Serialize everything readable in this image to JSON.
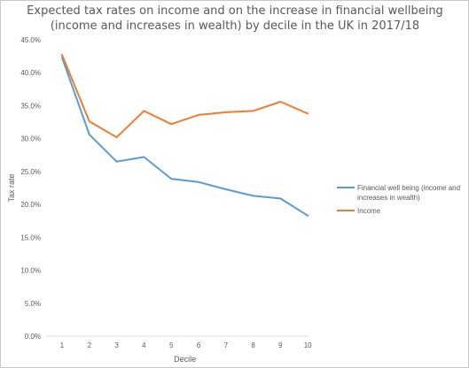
{
  "chart_data": {
    "type": "line",
    "title_lines": [
      "Expected tax rates on income and on the increase in financial wellbeing",
      "(income and increases in wealth) by decile in the UK in 2017/18"
    ],
    "xlabel": "Decile",
    "ylabel": "Tax rate",
    "x": [
      "1",
      "2",
      "3",
      "4",
      "5",
      "6",
      "7",
      "8",
      "9",
      "10"
    ],
    "ylim": [
      0,
      45
    ],
    "yticks": [
      "0.0%",
      "5.0%",
      "10.0%",
      "15.0%",
      "20.0%",
      "25.0%",
      "30.0%",
      "35.0%",
      "40.0%",
      "45.0%"
    ],
    "grid": false,
    "legend_position": "right",
    "series": [
      {
        "name_lines": [
          "Financial well being (income and",
          "increases in wealth)"
        ],
        "color": "#5b9bd5",
        "values": [
          42.3,
          30.6,
          26.5,
          27.2,
          23.9,
          23.4,
          22.3,
          21.3,
          20.9,
          18.3
        ]
      },
      {
        "name_lines": [
          "Income"
        ],
        "color": "#ed7d31",
        "values": [
          42.7,
          32.6,
          30.2,
          34.2,
          32.2,
          33.6,
          34.0,
          34.2,
          35.6,
          33.8
        ]
      }
    ]
  }
}
